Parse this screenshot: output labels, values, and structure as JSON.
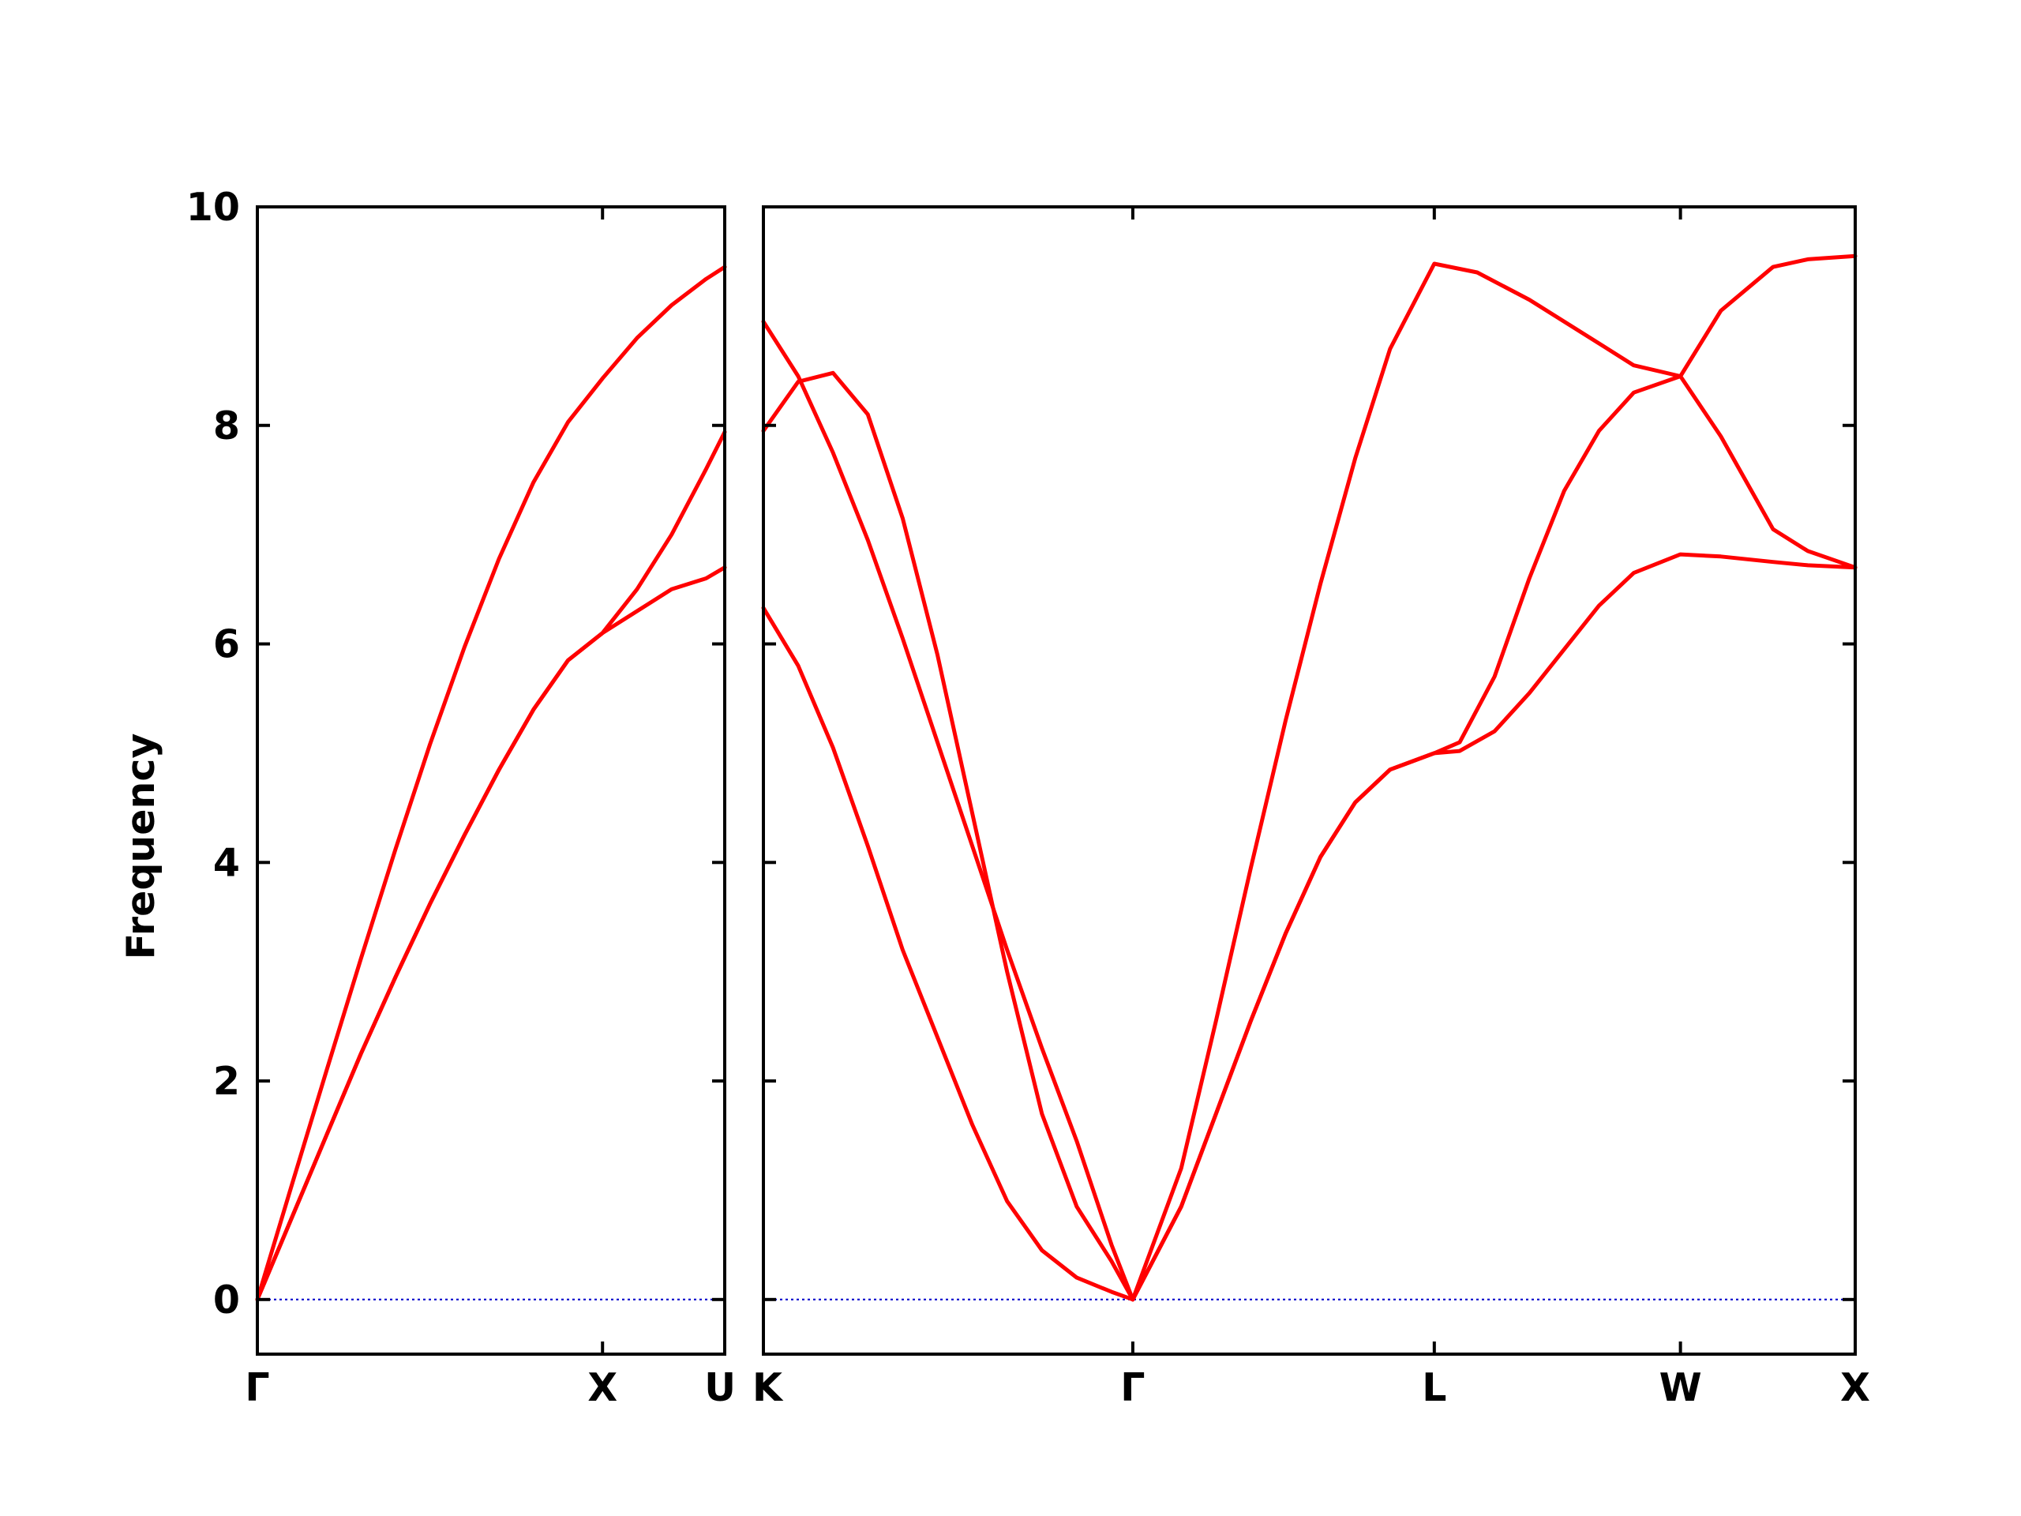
{
  "chart_data": {
    "type": "line",
    "ylabel": "Frequency",
    "ylim": [
      -0.5,
      10
    ],
    "yticks": [
      0,
      2,
      4,
      6,
      8,
      10
    ],
    "band_color": "#ff0000",
    "zero_line_color": "#0000cc",
    "panels": [
      {
        "xlim": [
          0,
          1.354
        ],
        "xticks": [
          {
            "x": 0,
            "label": "Γ"
          },
          {
            "x": 1.0,
            "label": "X"
          },
          {
            "x": 1.354,
            "label": "U"
          }
        ],
        "series": [
          {
            "points": [
              [
                0,
                0
              ],
              [
                0.1,
                1.05
              ],
              [
                0.2,
                2.09
              ],
              [
                0.3,
                3.12
              ],
              [
                0.4,
                4.12
              ],
              [
                0.5,
                5.08
              ],
              [
                0.6,
                5.97
              ],
              [
                0.7,
                6.78
              ],
              [
                0.8,
                7.48
              ],
              [
                0.9,
                8.03
              ],
              [
                1.0,
                8.43
              ],
              [
                1.1,
                8.8
              ],
              [
                1.2,
                9.1
              ],
              [
                1.3,
                9.34
              ],
              [
                1.354,
                9.45
              ]
            ]
          },
          {
            "points": [
              [
                0,
                0
              ],
              [
                0.1,
                0.75
              ],
              [
                0.2,
                1.5
              ],
              [
                0.3,
                2.25
              ],
              [
                0.4,
                2.95
              ],
              [
                0.5,
                3.62
              ],
              [
                0.6,
                4.25
              ],
              [
                0.7,
                4.85
              ],
              [
                0.8,
                5.4
              ],
              [
                0.9,
                5.85
              ],
              [
                1.0,
                6.1
              ],
              [
                1.1,
                6.5
              ],
              [
                1.2,
                7.0
              ],
              [
                1.3,
                7.6
              ],
              [
                1.354,
                7.94
              ]
            ]
          },
          {
            "points": [
              [
                0,
                0
              ],
              [
                0.1,
                0.75
              ],
              [
                0.2,
                1.5
              ],
              [
                0.3,
                2.25
              ],
              [
                0.4,
                2.95
              ],
              [
                0.5,
                3.62
              ],
              [
                0.6,
                4.25
              ],
              [
                0.7,
                4.85
              ],
              [
                0.8,
                5.4
              ],
              [
                0.9,
                5.85
              ],
              [
                1.0,
                6.1
              ],
              [
                1.1,
                6.3
              ],
              [
                1.2,
                6.5
              ],
              [
                1.3,
                6.6
              ],
              [
                1.354,
                6.7
              ]
            ]
          }
        ]
      },
      {
        "xlim": [
          0,
          3.136
        ],
        "xticks": [
          {
            "x": 0,
            "label": "K"
          },
          {
            "x": 1.061,
            "label": "Γ"
          },
          {
            "x": 1.927,
            "label": "L"
          },
          {
            "x": 2.634,
            "label": "W"
          },
          {
            "x": 3.136,
            "label": "X"
          }
        ],
        "series": [
          {
            "points": [
              [
                0,
                8.95
              ],
              [
                0.1,
                8.45
              ],
              [
                0.2,
                7.75
              ],
              [
                0.3,
                6.95
              ],
              [
                0.4,
                6.05
              ],
              [
                0.5,
                5.1
              ],
              [
                0.6,
                4.15
              ],
              [
                0.7,
                3.2
              ],
              [
                0.8,
                2.3
              ],
              [
                0.9,
                1.45
              ],
              [
                1.0,
                0.5
              ],
              [
                1.061,
                0
              ]
            ]
          },
          {
            "points": [
              [
                0,
                7.95
              ],
              [
                0.1,
                8.4
              ],
              [
                0.2,
                8.48
              ],
              [
                0.3,
                8.1
              ],
              [
                0.4,
                7.15
              ],
              [
                0.5,
                5.9
              ],
              [
                0.6,
                4.45
              ],
              [
                0.7,
                3.0
              ],
              [
                0.8,
                1.7
              ],
              [
                0.9,
                0.85
              ],
              [
                1.0,
                0.35
              ],
              [
                1.061,
                0
              ]
            ]
          },
          {
            "points": [
              [
                0,
                6.33
              ],
              [
                0.1,
                5.8
              ],
              [
                0.2,
                5.05
              ],
              [
                0.3,
                4.15
              ],
              [
                0.4,
                3.2
              ],
              [
                0.5,
                2.4
              ],
              [
                0.6,
                1.6
              ],
              [
                0.7,
                0.9
              ],
              [
                0.8,
                0.45
              ],
              [
                0.9,
                0.2
              ],
              [
                1.0,
                0.07
              ],
              [
                1.061,
                0
              ]
            ]
          },
          {
            "points": [
              [
                1.061,
                0
              ],
              [
                1.2,
                1.2
              ],
              [
                1.3,
                2.55
              ],
              [
                1.4,
                3.95
              ],
              [
                1.5,
                5.3
              ],
              [
                1.6,
                6.55
              ],
              [
                1.7,
                7.7
              ],
              [
                1.8,
                8.7
              ],
              [
                1.927,
                9.48
              ],
              [
                2.05,
                9.4
              ],
              [
                2.2,
                9.15
              ],
              [
                2.35,
                8.85
              ],
              [
                2.5,
                8.55
              ],
              [
                2.634,
                8.45
              ],
              [
                2.75,
                9.05
              ],
              [
                2.9,
                9.45
              ],
              [
                3.0,
                9.52
              ],
              [
                3.136,
                9.55
              ]
            ]
          },
          {
            "points": [
              [
                1.061,
                0
              ],
              [
                1.2,
                0.85
              ],
              [
                1.3,
                1.7
              ],
              [
                1.4,
                2.55
              ],
              [
                1.5,
                3.35
              ],
              [
                1.6,
                4.05
              ],
              [
                1.7,
                4.55
              ],
              [
                1.8,
                4.85
              ],
              [
                1.927,
                5.0
              ],
              [
                2.0,
                5.1
              ],
              [
                2.1,
                5.7
              ],
              [
                2.2,
                6.6
              ],
              [
                2.3,
                7.4
              ],
              [
                2.4,
                7.95
              ],
              [
                2.5,
                8.3
              ],
              [
                2.634,
                8.45
              ],
              [
                2.75,
                7.9
              ],
              [
                2.9,
                7.05
              ],
              [
                3.0,
                6.85
              ],
              [
                3.136,
                6.7
              ]
            ]
          },
          {
            "points": [
              [
                1.061,
                0
              ],
              [
                1.2,
                0.85
              ],
              [
                1.3,
                1.7
              ],
              [
                1.4,
                2.55
              ],
              [
                1.5,
                3.35
              ],
              [
                1.6,
                4.05
              ],
              [
                1.7,
                4.55
              ],
              [
                1.8,
                4.85
              ],
              [
                1.927,
                5.0
              ],
              [
                2.0,
                5.02
              ],
              [
                2.1,
                5.2
              ],
              [
                2.2,
                5.55
              ],
              [
                2.3,
                5.95
              ],
              [
                2.4,
                6.35
              ],
              [
                2.5,
                6.65
              ],
              [
                2.634,
                6.82
              ],
              [
                2.75,
                6.8
              ],
              [
                2.9,
                6.75
              ],
              [
                3.0,
                6.72
              ],
              [
                3.136,
                6.7
              ]
            ]
          }
        ]
      }
    ]
  }
}
